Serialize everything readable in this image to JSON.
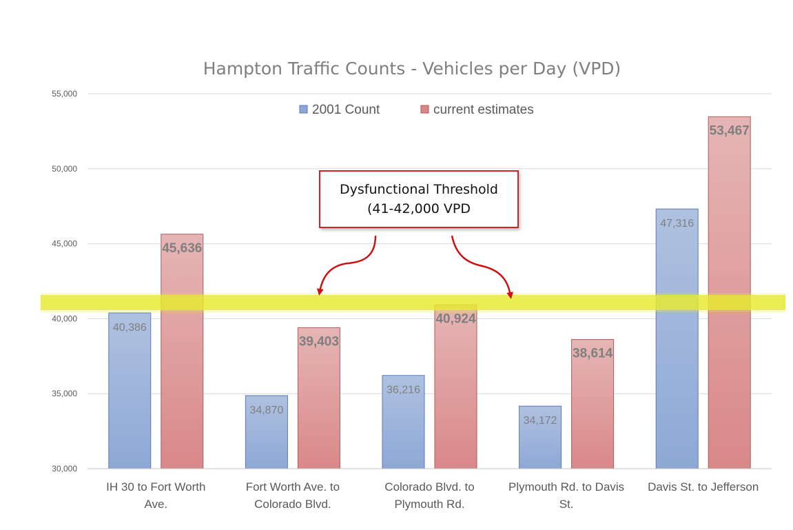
{
  "chart_data": {
    "type": "bar",
    "title": "Hampton Traffic Counts - Vehicles per Day (VPD)",
    "categories": [
      [
        "IH 30 to Fort Worth",
        "Ave."
      ],
      [
        "Fort Worth Ave. to",
        "Colorado Blvd."
      ],
      [
        "Colorado Blvd. to",
        "Plymouth Rd."
      ],
      [
        "Plymouth Rd. to Davis",
        "St."
      ],
      [
        "Davis St. to Jefferson"
      ]
    ],
    "series": [
      {
        "name": "2001 Count",
        "values": [
          40386,
          34870,
          36216,
          34172,
          47316
        ],
        "labels": [
          "40,386",
          "34,870",
          "36,216",
          "34,172",
          "47,316"
        ]
      },
      {
        "name": "current estimates",
        "values": [
          45636,
          39403,
          40924,
          38614,
          53467
        ],
        "labels": [
          "45,636",
          "39,403",
          "40,924",
          "38,614",
          "53,467"
        ]
      }
    ],
    "ylim": [
      30000,
      55000
    ],
    "yticks": [
      30000,
      35000,
      40000,
      45000,
      50000,
      55000
    ],
    "ytick_labels": [
      "30,000",
      "35,000",
      "40,000",
      "45,000",
      "50,000",
      "55,000"
    ],
    "threshold_band": [
      40500,
      41500
    ],
    "grid": true,
    "legend": "top",
    "colors": {
      "series1_top": "#afc1e0",
      "series1_bottom": "#8ea8d6",
      "series1_edge": "#5a7ab8",
      "series2_top": "#e6b5b5",
      "series2_bottom": "#d98888",
      "series2_edge": "#b25a5a",
      "band": "#e6ea30",
      "arrow": "#cc1111",
      "gridline": "#d9d9d9",
      "text": "#7f7f7f"
    }
  },
  "callout": {
    "line1": "Dysfunctional Threshold",
    "line2": "(41-42,000 VPD"
  }
}
